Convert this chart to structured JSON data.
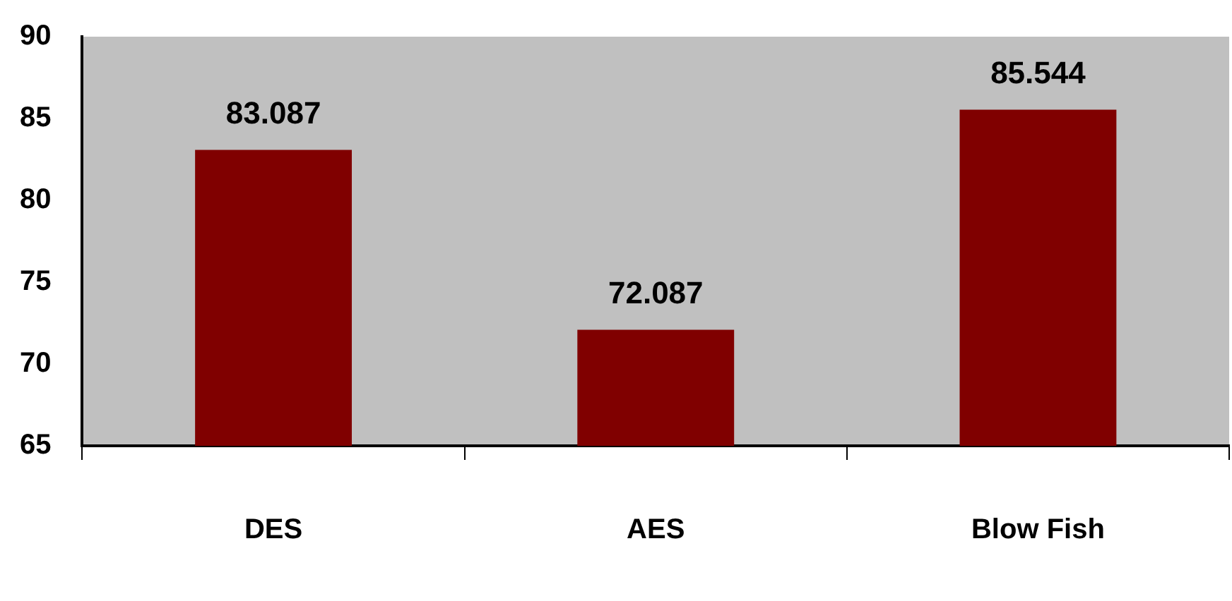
{
  "chart_data": {
    "type": "bar",
    "categories": [
      "DES",
      "AES",
      "Blow Fish"
    ],
    "values": [
      83.087,
      72.087,
      85.544
    ],
    "color": "#800000",
    "ylim": [
      65,
      90
    ],
    "yticks": [
      65,
      70,
      75,
      80,
      85,
      90
    ],
    "data_labels": true,
    "grid": false
  }
}
